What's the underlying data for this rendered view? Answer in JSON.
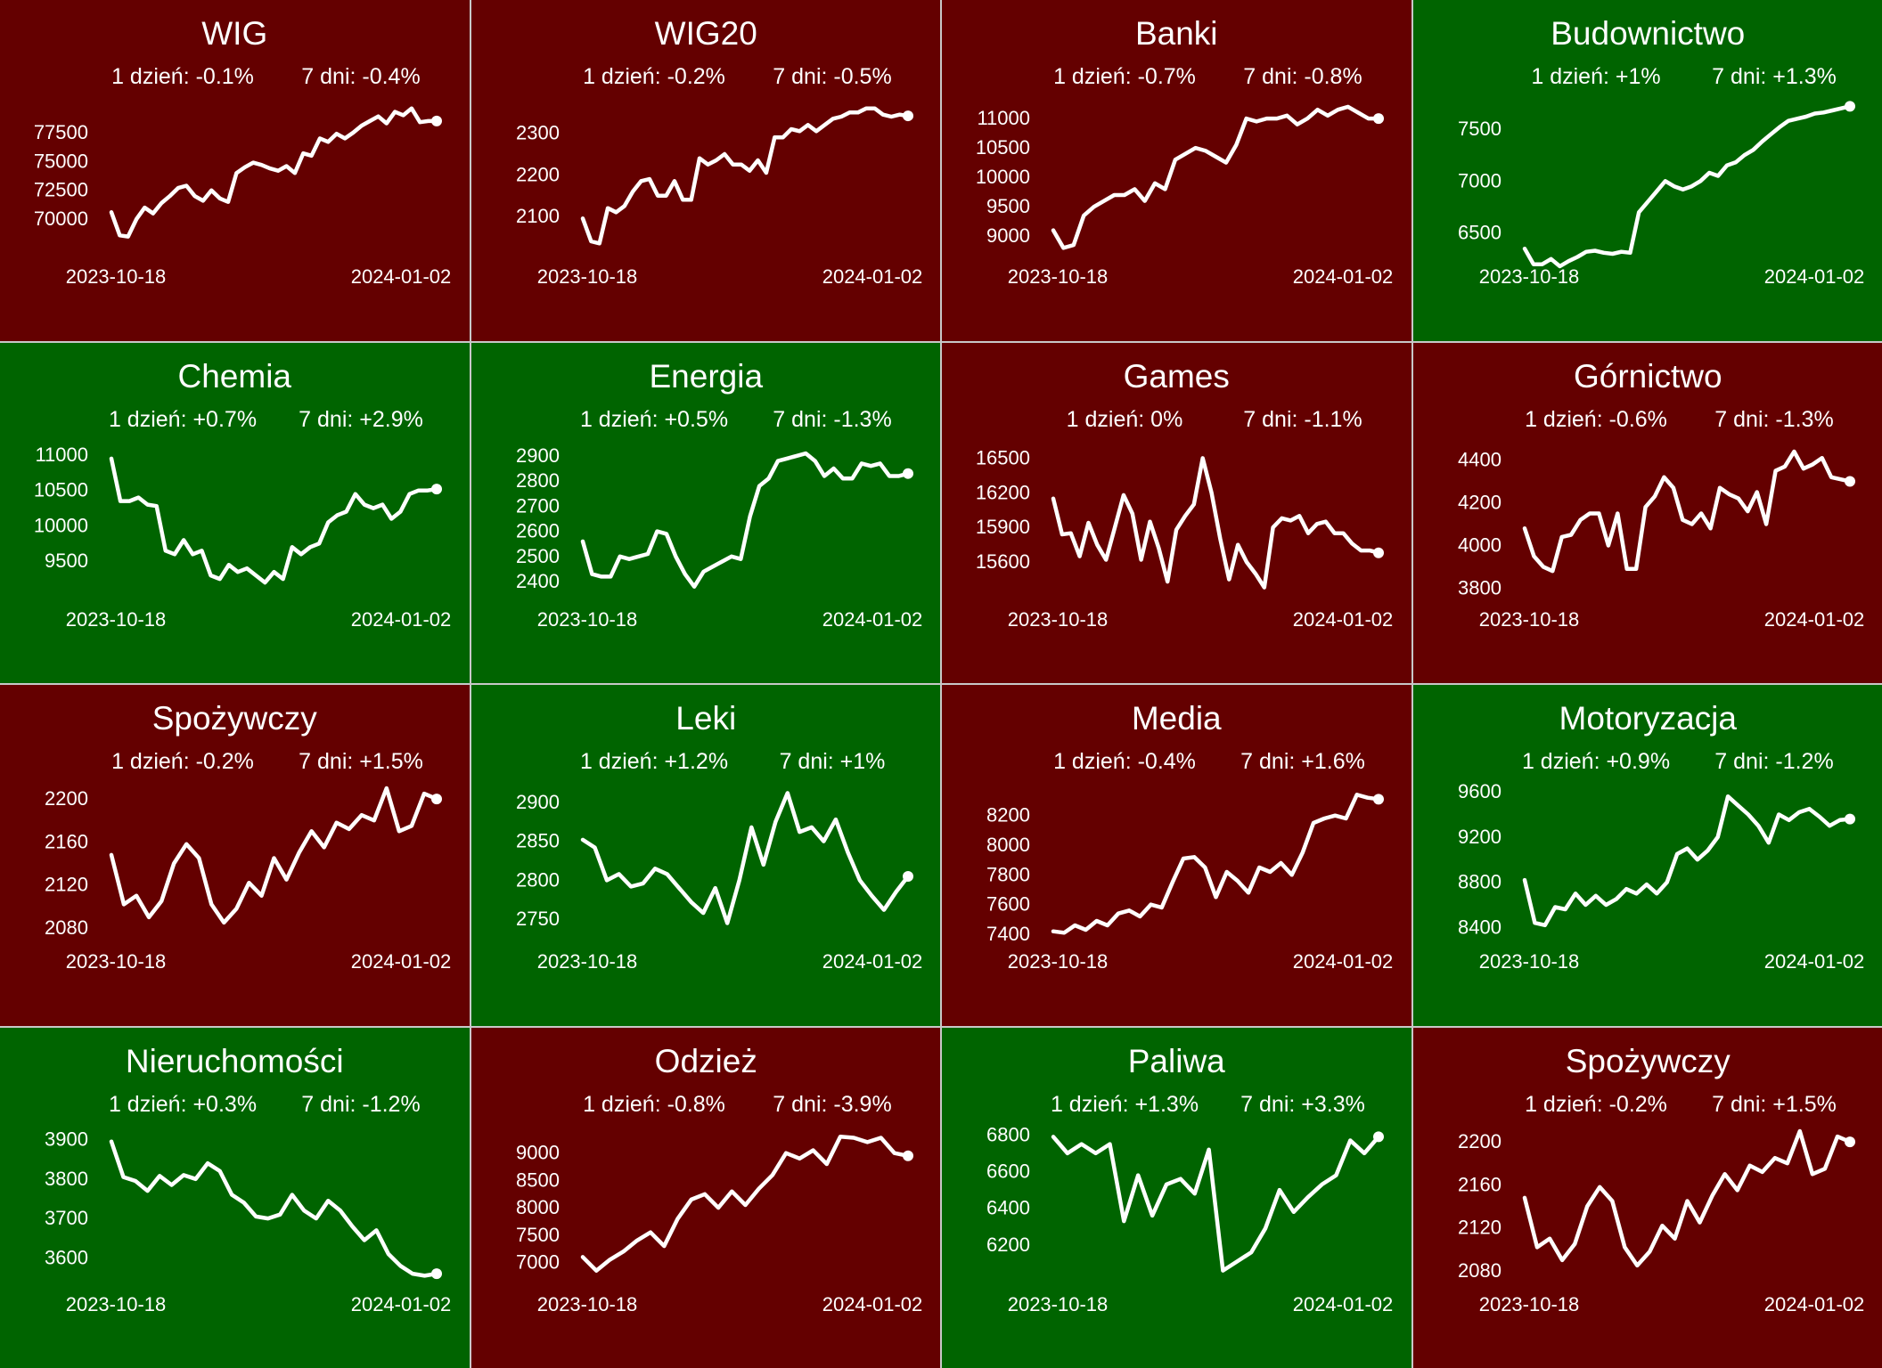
{
  "colors": {
    "up": "#006400",
    "down": "#640000",
    "line": "#ffffff",
    "border": "#c8c8c8"
  },
  "chart_data": [
    {
      "type": "line",
      "title": "WIG",
      "day_change": "1 dzień: -0.1%",
      "week_change": "7 dni: -0.4%",
      "trend": "down",
      "x_start": "2023-10-18",
      "x_end": "2024-01-02",
      "yticks": [
        "70000",
        "72500",
        "75000",
        "77500"
      ],
      "ylim": [
        67000,
        80500
      ],
      "y": [
        70600,
        68600,
        68500,
        70000,
        71000,
        70500,
        71400,
        72000,
        72700,
        72900,
        72000,
        71600,
        72500,
        71800,
        71500,
        74000,
        74500,
        74900,
        74700,
        74400,
        74200,
        74600,
        74000,
        75700,
        75500,
        77000,
        76700,
        77400,
        77000,
        77500,
        78100,
        78500,
        78900,
        78300,
        79300,
        79000,
        79600,
        78400,
        78500,
        78500
      ]
    },
    {
      "type": "line",
      "title": "WIG20",
      "day_change": "1 dzień: -0.2%",
      "week_change": "7 dni: -0.5%",
      "trend": "down",
      "x_start": "2023-10-18",
      "x_end": "2024-01-02",
      "yticks": [
        "2100",
        "2200",
        "2300"
      ],
      "ylim": [
        2010,
        2385
      ],
      "y": [
        2095,
        2040,
        2035,
        2120,
        2110,
        2125,
        2160,
        2185,
        2190,
        2150,
        2150,
        2185,
        2140,
        2140,
        2240,
        2225,
        2235,
        2250,
        2225,
        2225,
        2210,
        2235,
        2205,
        2290,
        2290,
        2310,
        2305,
        2320,
        2305,
        2320,
        2335,
        2340,
        2350,
        2350,
        2360,
        2360,
        2345,
        2340,
        2345,
        2342
      ]
    },
    {
      "type": "line",
      "title": "Banki",
      "day_change": "1 dzień: -0.7%",
      "week_change": "7 dni: -0.8%",
      "trend": "down",
      "x_start": "2023-10-18",
      "x_end": "2024-01-02",
      "yticks": [
        "9000",
        "9500",
        "10000",
        "10500",
        "11000"
      ],
      "ylim": [
        8700,
        11350
      ],
      "y": [
        9100,
        8800,
        8850,
        9350,
        9500,
        9600,
        9700,
        9700,
        9800,
        9600,
        9900,
        9800,
        10300,
        10400,
        10500,
        10450,
        10350,
        10250,
        10550,
        11000,
        10950,
        11000,
        11000,
        11050,
        10900,
        11000,
        11150,
        11050,
        11150,
        11200,
        11100,
        11000,
        11000
      ]
    },
    {
      "type": "line",
      "title": "Budownictwo",
      "day_change": "1 dzień: +1%",
      "week_change": "7 dni: +1.3%",
      "trend": "up",
      "x_start": "2023-10-18",
      "x_end": "2024-01-02",
      "yticks": [
        "6500",
        "7000",
        "7500"
      ],
      "ylim": [
        6300,
        7800
      ],
      "y": [
        6350,
        6200,
        6200,
        6250,
        6180,
        6230,
        6270,
        6320,
        6330,
        6310,
        6300,
        6320,
        6310,
        6700,
        6800,
        6900,
        7000,
        6950,
        6920,
        6950,
        7000,
        7080,
        7050,
        7150,
        7180,
        7250,
        7300,
        7380,
        7450,
        7520,
        7580,
        7600,
        7620,
        7650,
        7660,
        7680,
        7700,
        7720
      ]
    },
    {
      "type": "line",
      "title": "Chemia",
      "day_change": "1 dzień: +0.7%",
      "week_change": "7 dni: +2.9%",
      "trend": "up",
      "x_start": "2023-10-18",
      "x_end": "2024-01-02",
      "yticks": [
        "9500",
        "10000",
        "10500",
        "11000"
      ],
      "ylim": [
        9000,
        11200
      ],
      "y": [
        10950,
        10350,
        10350,
        10400,
        10300,
        10280,
        9650,
        9600,
        9800,
        9600,
        9650,
        9300,
        9250,
        9450,
        9350,
        9400,
        9300,
        9200,
        9350,
        9250,
        9700,
        9600,
        9700,
        9750,
        10050,
        10150,
        10200,
        10450,
        10300,
        10250,
        10300,
        10100,
        10200,
        10450,
        10500,
        10500,
        10520
      ]
    },
    {
      "type": "line",
      "title": "Energia",
      "day_change": "1 dzień: +0.5%",
      "week_change": "7 dni: -1.3%",
      "trend": "up",
      "x_start": "2023-10-18",
      "x_end": "2024-01-02",
      "yticks": [
        "2400",
        "2500",
        "2600",
        "2700",
        "2800",
        "2900"
      ],
      "ylim": [
        2340,
        2960
      ],
      "y": [
        2560,
        2430,
        2420,
        2420,
        2500,
        2490,
        2500,
        2510,
        2600,
        2590,
        2500,
        2430,
        2380,
        2440,
        2460,
        2480,
        2500,
        2490,
        2660,
        2780,
        2810,
        2880,
        2890,
        2900,
        2910,
        2880,
        2820,
        2850,
        2810,
        2810,
        2870,
        2860,
        2870,
        2820,
        2820,
        2830
      ]
    },
    {
      "type": "line",
      "title": "Games",
      "day_change": "1 dzień: 0%",
      "week_change": "7 dni: -1.1%",
      "trend": "down",
      "x_start": "2023-10-18",
      "x_end": "2024-01-02",
      "yticks": [
        "15600",
        "15900",
        "16200",
        "16500"
      ],
      "ylim": [
        15300,
        16650
      ],
      "y": [
        16150,
        15840,
        15850,
        15650,
        15940,
        15750,
        15620,
        15900,
        16180,
        16020,
        15620,
        15950,
        15720,
        15430,
        15880,
        16000,
        16100,
        16500,
        16200,
        15800,
        15450,
        15750,
        15600,
        15500,
        15380,
        15900,
        15980,
        15960,
        16000,
        15850,
        15930,
        15950,
        15850,
        15850,
        15760,
        15700,
        15700,
        15680
      ]
    },
    {
      "type": "line",
      "title": "Górnictwo",
      "day_change": "1 dzień: -0.6%",
      "week_change": "7 dni: -1.3%",
      "trend": "down",
      "x_start": "2023-10-18",
      "x_end": "2024-01-02",
      "yticks": [
        "3800",
        "4000",
        "4200",
        "4400"
      ],
      "ylim": [
        3760,
        4490
      ],
      "y": [
        4080,
        3950,
        3900,
        3880,
        4040,
        4050,
        4120,
        4150,
        4150,
        4000,
        4150,
        3890,
        3890,
        4180,
        4230,
        4320,
        4270,
        4120,
        4100,
        4150,
        4080,
        4270,
        4240,
        4220,
        4160,
        4250,
        4100,
        4350,
        4370,
        4440,
        4360,
        4380,
        4410,
        4320,
        4310,
        4300
      ]
    },
    {
      "type": "line",
      "title": "Spożywczy",
      "day_change": "1 dzień: -0.2%",
      "week_change": "7 dni: +1.5%",
      "trend": "down",
      "x_start": "2023-10-18",
      "x_end": "2024-01-02",
      "yticks": [
        "2080",
        "2120",
        "2160",
        "2200"
      ],
      "ylim": [
        2070,
        2215
      ],
      "y": [
        2148,
        2102,
        2110,
        2090,
        2105,
        2140,
        2158,
        2145,
        2102,
        2085,
        2098,
        2122,
        2110,
        2145,
        2125,
        2150,
        2170,
        2155,
        2178,
        2172,
        2185,
        2180,
        2210,
        2170,
        2175,
        2205,
        2200
      ]
    },
    {
      "type": "line",
      "title": "Leki",
      "day_change": "1 dzień: +1.2%",
      "week_change": "7 dni: +1%",
      "trend": "up",
      "x_start": "2023-10-18",
      "x_end": "2024-01-02",
      "yticks": [
        "2750",
        "2800",
        "2850",
        "2900"
      ],
      "ylim": [
        2725,
        2925
      ],
      "y": [
        2852,
        2842,
        2800,
        2808,
        2792,
        2796,
        2815,
        2808,
        2790,
        2772,
        2758,
        2790,
        2745,
        2800,
        2868,
        2820,
        2875,
        2912,
        2862,
        2868,
        2850,
        2878,
        2836,
        2800,
        2780,
        2762,
        2785,
        2805
      ]
    },
    {
      "type": "line",
      "title": "Media",
      "day_change": "1 dzień: -0.4%",
      "week_change": "7 dni: +1.6%",
      "trend": "down",
      "x_start": "2023-10-18",
      "x_end": "2024-01-02",
      "yticks": [
        "7400",
        "7600",
        "7800",
        "8000",
        "8200"
      ],
      "ylim": [
        7370,
        8420
      ],
      "y": [
        7420,
        7410,
        7460,
        7430,
        7490,
        7460,
        7540,
        7560,
        7520,
        7600,
        7580,
        7750,
        7910,
        7920,
        7850,
        7650,
        7820,
        7760,
        7680,
        7850,
        7820,
        7880,
        7800,
        7950,
        8150,
        8180,
        8200,
        8180,
        8340,
        8320,
        8310
      ]
    },
    {
      "type": "line",
      "title": "Motoryzacja",
      "day_change": "1 dzień: +0.9%",
      "week_change": "7 dni: -1.2%",
      "trend": "up",
      "x_start": "2023-10-18",
      "x_end": "2024-01-02",
      "yticks": [
        "8400",
        "8800",
        "9200",
        "9600"
      ],
      "ylim": [
        8300,
        9680
      ],
      "y": [
        8820,
        8440,
        8420,
        8580,
        8560,
        8700,
        8600,
        8680,
        8600,
        8650,
        8740,
        8700,
        8780,
        8700,
        8800,
        9050,
        9100,
        9000,
        9080,
        9200,
        9560,
        9480,
        9400,
        9300,
        9150,
        9400,
        9350,
        9420,
        9450,
        9380,
        9300,
        9350,
        9360
      ]
    },
    {
      "type": "line",
      "title": "Nieruchomości",
      "day_change": "1 dzień: +0.3%",
      "week_change": "7 dni: -1.2%",
      "trend": "up",
      "x_start": "2023-10-18",
      "x_end": "2024-01-02",
      "yticks": [
        "3600",
        "3700",
        "3800",
        "3900"
      ],
      "ylim": [
        3540,
        3935
      ],
      "y": [
        3895,
        3805,
        3795,
        3770,
        3808,
        3785,
        3810,
        3800,
        3840,
        3820,
        3760,
        3740,
        3705,
        3700,
        3710,
        3760,
        3720,
        3700,
        3745,
        3720,
        3680,
        3645,
        3670,
        3610,
        3580,
        3560,
        3555,
        3560
      ]
    },
    {
      "type": "line",
      "title": "Odzież",
      "day_change": "1 dzień: -0.8%",
      "week_change": "7 dni: -3.9%",
      "trend": "down",
      "x_start": "2023-10-18",
      "x_end": "2024-01-02",
      "yticks": [
        "7000",
        "7500",
        "8000",
        "8500",
        "9000"
      ],
      "ylim": [
        6650,
        9500
      ],
      "y": [
        7100,
        6850,
        7050,
        7200,
        7400,
        7550,
        7300,
        7800,
        8150,
        8250,
        8000,
        8300,
        8050,
        8350,
        8600,
        9000,
        8900,
        9050,
        8800,
        9300,
        9280,
        9200,
        9280,
        9000,
        8950
      ]
    },
    {
      "type": "line",
      "title": "Paliwa",
      "day_change": "1 dzień: +1.3%",
      "week_change": "7 dni: +3.3%",
      "trend": "up",
      "x_start": "2023-10-18",
      "x_end": "2024-01-02",
      "yticks": [
        "6200",
        "6400",
        "6600",
        "6800"
      ],
      "ylim": [
        6000,
        6850
      ],
      "y": [
        6790,
        6700,
        6750,
        6700,
        6750,
        6330,
        6580,
        6360,
        6530,
        6560,
        6480,
        6720,
        6060,
        6110,
        6160,
        6290,
        6500,
        6380,
        6460,
        6530,
        6580,
        6770,
        6700,
        6790
      ]
    },
    {
      "type": "line",
      "title": "Spożywczy",
      "day_change": "1 dzień: -0.2%",
      "week_change": "7 dni: +1.5%",
      "trend": "down",
      "x_start": "2023-10-18",
      "x_end": "2024-01-02",
      "yticks": [
        "2080",
        "2120",
        "2160",
        "2200"
      ],
      "ylim": [
        2070,
        2215
      ],
      "y": [
        2148,
        2102,
        2110,
        2090,
        2105,
        2140,
        2158,
        2145,
        2102,
        2085,
        2098,
        2122,
        2110,
        2145,
        2125,
        2150,
        2170,
        2155,
        2178,
        2172,
        2185,
        2180,
        2210,
        2170,
        2175,
        2205,
        2200
      ]
    }
  ]
}
